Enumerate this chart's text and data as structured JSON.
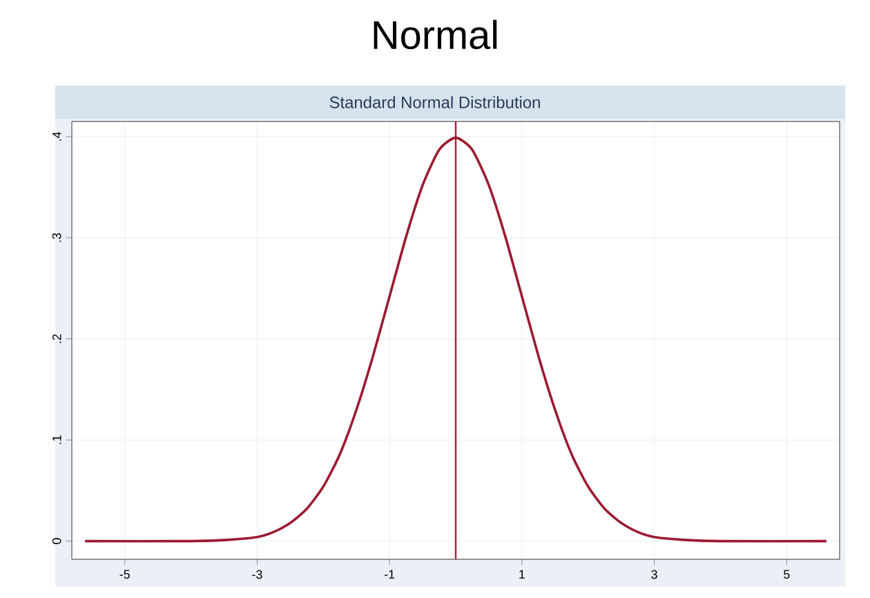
{
  "chart_data": {
    "type": "line",
    "title": "Normal",
    "subtitle": "Standard Normal Distribution",
    "x": [
      -5.6,
      -4,
      -3.5,
      -3,
      -2.75,
      -2.5,
      -2.25,
      -2,
      -1.75,
      -1.5,
      -1.25,
      -1,
      -0.75,
      -0.5,
      -0.25,
      0,
      0.25,
      0.5,
      0.75,
      1,
      1.25,
      1.5,
      1.75,
      2,
      2.25,
      2.5,
      2.75,
      3,
      3.5,
      4,
      5.6
    ],
    "series": [
      {
        "color": "#9b1b30",
        "values": [
          0,
          0,
          0.001,
          0.004,
          0.009,
          0.018,
          0.032,
          0.054,
          0.086,
          0.13,
          0.183,
          0.242,
          0.301,
          0.352,
          0.387,
          0.399,
          0.387,
          0.352,
          0.301,
          0.242,
          0.183,
          0.13,
          0.086,
          0.054,
          0.032,
          0.018,
          0.009,
          0.004,
          0.001,
          0,
          0
        ]
      }
    ],
    "xlim": [
      -5.8,
      5.8
    ],
    "xticks": [
      -5,
      -3,
      -1,
      1,
      3,
      5
    ],
    "ylim": [
      -0.018,
      0.415
    ],
    "yticks": [
      0,
      {
        "value": 0.1,
        "label": ".1"
      },
      {
        "value": 0.2,
        "label": ".2"
      },
      {
        "value": 0.3,
        "label": ".3"
      },
      {
        "value": 0.4,
        "label": ".4"
      }
    ],
    "grid": true,
    "marker": "none",
    "line_style": "solid",
    "ref_lines": [
      {
        "axis": "x",
        "value": 0,
        "color": "#c8102e"
      }
    ]
  }
}
